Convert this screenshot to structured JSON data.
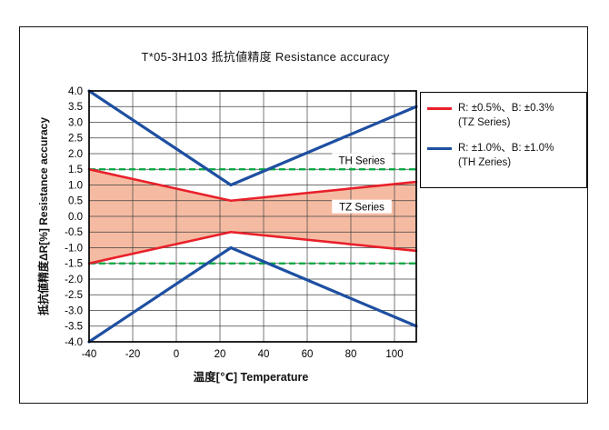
{
  "colors": {
    "frame_border": "#161616",
    "grid": "#404040",
    "plot_border": "#000000",
    "tz_red": "#e8202a",
    "th_blue": "#1e4fa1",
    "tz_fill": "#f5bba2",
    "limit_green": "#00a63f",
    "background": "#ffffff"
  },
  "chart_data": {
    "type": "line",
    "title": "T*05-3H103 抵抗値精度 Resistance accuracy",
    "xlabel": "温度[℃] Temperature",
    "ylabel": "抵抗値精度ΔR[%] Resistance accuracy",
    "xlim": [
      -40,
      110
    ],
    "ylim": [
      -4.0,
      4.0
    ],
    "x_ticks": [
      -40,
      -20,
      0,
      20,
      40,
      60,
      80,
      100
    ],
    "y_tick_step": 0.5,
    "grid": true,
    "legend_position": "outside-right",
    "series": [
      {
        "name": "TH Series upper",
        "color": "#1e4fa1",
        "width": 3.2,
        "points": [
          [
            -40,
            4.0
          ],
          [
            25,
            1.0
          ],
          [
            110,
            3.5
          ]
        ]
      },
      {
        "name": "TH Series lower",
        "color": "#1e4fa1",
        "width": 3.2,
        "points": [
          [
            -40,
            -4.0
          ],
          [
            25,
            -1.0
          ],
          [
            110,
            -3.5
          ]
        ]
      },
      {
        "name": "TZ Series upper",
        "color": "#e8202a",
        "width": 2.6,
        "points": [
          [
            -40,
            1.5
          ],
          [
            25,
            0.5
          ],
          [
            110,
            1.1
          ]
        ]
      },
      {
        "name": "TZ Series lower",
        "color": "#e8202a",
        "width": 2.6,
        "points": [
          [
            -40,
            -1.5
          ],
          [
            25,
            -0.5
          ],
          [
            110,
            -1.1
          ]
        ]
      }
    ],
    "fill_between": {
      "upper": 2,
      "lower": 3,
      "color": "#f5bba2"
    },
    "reference_lines": [
      {
        "y": 1.5,
        "color": "#00a63f",
        "dash": true
      },
      {
        "y": -1.5,
        "color": "#00a63f",
        "dash": true
      }
    ],
    "annotations": [
      {
        "text": "TH Series",
        "x": 85,
        "y": 1.78
      },
      {
        "text": "TZ Series",
        "x": 85,
        "y": 0.3
      }
    ]
  },
  "legend": {
    "entries": [
      {
        "spec": "R: ±0.5%、B: ±0.3%",
        "series_label": "(TZ Series)",
        "color": "#e8202a"
      },
      {
        "spec": "R: ±1.0%、B: ±1.0%",
        "series_label": "(TH Zeries)",
        "color": "#1e4fa1"
      }
    ]
  }
}
